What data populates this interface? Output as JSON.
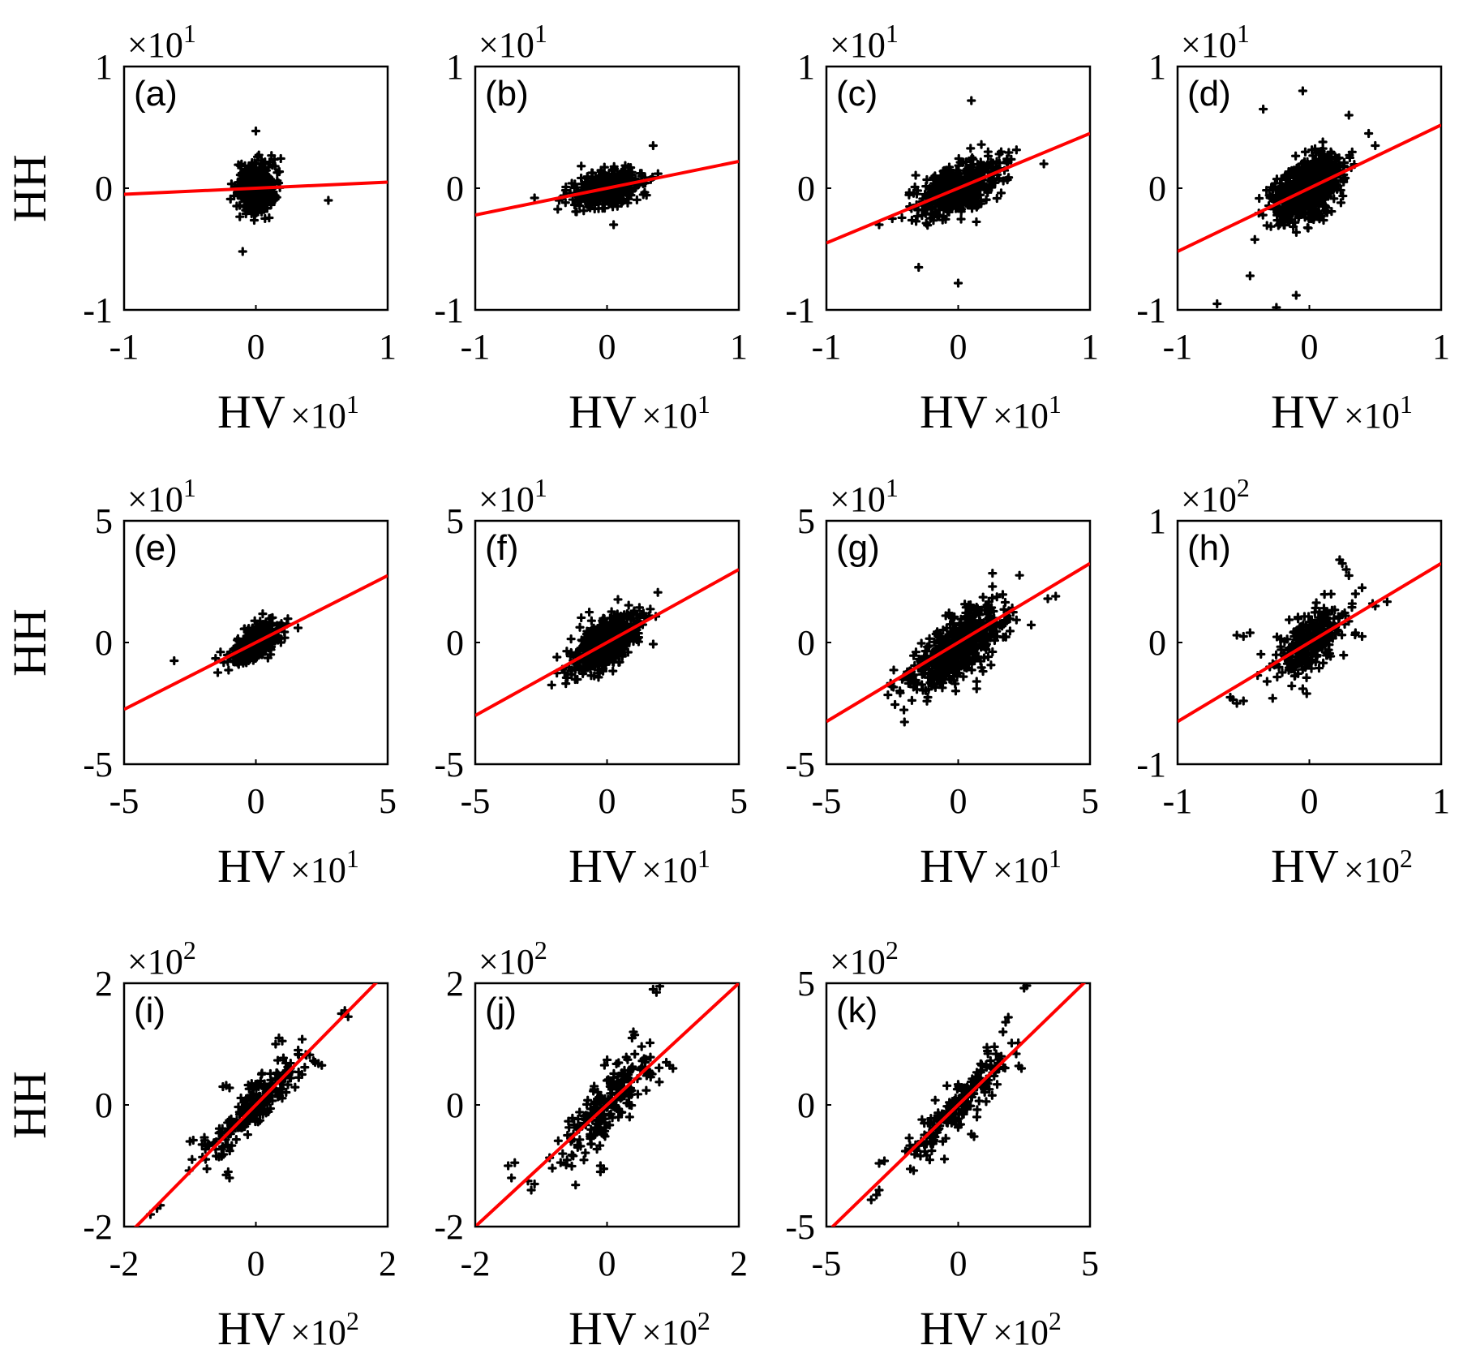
{
  "figure": {
    "ylabel": "HH",
    "xlabel": "HV",
    "red_color": "#ff0000",
    "point_color": "#000000"
  },
  "chart_data": [
    {
      "type": "scatter",
      "panel": "(a)",
      "xlabel": "HV",
      "ylabel": "HH",
      "x_ticks": [
        "-1",
        "0",
        "1"
      ],
      "y_ticks": [
        "-1",
        "0",
        "1"
      ],
      "x_multiplier_base": "×10",
      "x_multiplier_exp": "1",
      "y_multiplier_base": "×10",
      "y_multiplier_exp": "1",
      "xlim": [
        -1,
        1
      ],
      "ylim": [
        -1,
        1
      ],
      "fit_line": {
        "slope": 0.05,
        "intercept": 0.0
      },
      "cloud": {
        "cx": 0.0,
        "cy": 0.0,
        "sx": 0.07,
        "sy": 0.1,
        "rho": 0.0,
        "n": 450
      },
      "outliers": [
        [
          0.0,
          0.47
        ],
        [
          -0.1,
          -0.52
        ],
        [
          0.55,
          -0.1
        ]
      ]
    },
    {
      "type": "scatter",
      "panel": "(b)",
      "xlabel": "HV",
      "ylabel": "HH",
      "x_ticks": [
        "-1",
        "0",
        "1"
      ],
      "y_ticks": [
        "-1",
        "0",
        "1"
      ],
      "x_multiplier_base": "×10",
      "x_multiplier_exp": "1",
      "y_multiplier_base": "×10",
      "y_multiplier_exp": "1",
      "xlim": [
        -1,
        1
      ],
      "ylim": [
        -1,
        1
      ],
      "fit_line": {
        "slope": 0.22,
        "intercept": 0.0
      },
      "cloud": {
        "cx": 0.0,
        "cy": 0.0,
        "sx": 0.12,
        "sy": 0.07,
        "rho": 0.3,
        "n": 500
      },
      "outliers": [
        [
          0.35,
          0.35
        ],
        [
          -0.55,
          -0.08
        ],
        [
          0.05,
          -0.3
        ]
      ]
    },
    {
      "type": "scatter",
      "panel": "(c)",
      "xlabel": "HV",
      "ylabel": "HH",
      "x_ticks": [
        "-1",
        "0",
        "1"
      ],
      "y_ticks": [
        "-1",
        "0",
        "1"
      ],
      "x_multiplier_base": "×10",
      "x_multiplier_exp": "1",
      "y_multiplier_base": "×10",
      "y_multiplier_exp": "1",
      "xlim": [
        -1,
        1
      ],
      "ylim": [
        -1,
        1
      ],
      "fit_line": {
        "slope": 0.45,
        "intercept": 0.0
      },
      "cloud": {
        "cx": 0.0,
        "cy": 0.0,
        "sx": 0.15,
        "sy": 0.11,
        "rho": 0.45,
        "n": 550
      },
      "outliers": [
        [
          0.1,
          0.72
        ],
        [
          -0.3,
          -0.65
        ],
        [
          0.0,
          -0.78
        ],
        [
          -0.6,
          -0.3
        ],
        [
          0.65,
          0.2
        ],
        [
          -0.5,
          -0.25
        ]
      ]
    },
    {
      "type": "scatter",
      "panel": "(d)",
      "xlabel": "HV",
      "ylabel": "HH",
      "x_ticks": [
        "-1",
        "0",
        "1"
      ],
      "y_ticks": [
        "-1",
        "0",
        "1"
      ],
      "x_multiplier_base": "×10",
      "x_multiplier_exp": "1",
      "y_multiplier_base": "×10",
      "y_multiplier_exp": "1",
      "xlim": [
        -1,
        1
      ],
      "ylim": [
        -1,
        1
      ],
      "fit_line": {
        "slope": 0.52,
        "intercept": 0.0
      },
      "cloud": {
        "cx": 0.0,
        "cy": 0.0,
        "sx": 0.13,
        "sy": 0.13,
        "rho": 0.4,
        "n": 800
      },
      "outliers": [
        [
          -0.35,
          0.65
        ],
        [
          -0.05,
          0.8
        ],
        [
          0.3,
          0.6
        ],
        [
          -0.45,
          -0.72
        ],
        [
          -0.7,
          -0.95
        ],
        [
          -0.25,
          -0.98
        ],
        [
          -0.1,
          -0.88
        ],
        [
          0.45,
          0.45
        ],
        [
          0.5,
          0.35
        ]
      ]
    },
    {
      "type": "scatter",
      "panel": "(e)",
      "xlabel": "HV",
      "ylabel": "HH",
      "x_ticks": [
        "-5",
        "0",
        "5"
      ],
      "y_ticks": [
        "-5",
        "0",
        "5"
      ],
      "x_multiplier_base": "×10",
      "x_multiplier_exp": "1",
      "y_multiplier_base": "×10",
      "y_multiplier_exp": "1",
      "xlim": [
        -5,
        5
      ],
      "ylim": [
        -5,
        5
      ],
      "fit_line": {
        "slope": 0.55,
        "intercept": 0.0
      },
      "cloud": {
        "cx": 0.0,
        "cy": 0.0,
        "sx": 0.45,
        "sy": 0.38,
        "rho": 0.55,
        "n": 450
      },
      "outliers": [
        [
          -3.1,
          -0.75
        ],
        [
          1.6,
          0.6
        ]
      ]
    },
    {
      "type": "scatter",
      "panel": "(f)",
      "xlabel": "HV",
      "ylabel": "HH",
      "x_ticks": [
        "-5",
        "0",
        "5"
      ],
      "y_ticks": [
        "-5",
        "0",
        "5"
      ],
      "x_multiplier_base": "×10",
      "x_multiplier_exp": "1",
      "y_multiplier_base": "×10",
      "y_multiplier_exp": "1",
      "xlim": [
        -5,
        5
      ],
      "ylim": [
        -5,
        5
      ],
      "fit_line": {
        "slope": 0.6,
        "intercept": 0.0
      },
      "cloud": {
        "cx": 0.0,
        "cy": 0.0,
        "sx": 0.65,
        "sy": 0.55,
        "rho": 0.55,
        "n": 600
      },
      "outliers": [
        [
          -1.9,
          -0.6
        ],
        [
          1.6,
          1.1
        ]
      ]
    },
    {
      "type": "scatter",
      "panel": "(g)",
      "xlabel": "HV",
      "ylabel": "HH",
      "x_ticks": [
        "-5",
        "0",
        "5"
      ],
      "y_ticks": [
        "-5",
        "0",
        "5"
      ],
      "x_multiplier_base": "×10",
      "x_multiplier_exp": "1",
      "y_multiplier_base": "×10",
      "y_multiplier_exp": "1",
      "xlim": [
        -5,
        5
      ],
      "ylim": [
        -5,
        5
      ],
      "fit_line": {
        "slope": 0.65,
        "intercept": 0.0
      },
      "cloud": {
        "cx": 0.0,
        "cy": -0.2,
        "sx": 0.85,
        "sy": 0.8,
        "rho": 0.65,
        "n": 650
      },
      "outliers": [
        [
          3.7,
          1.9
        ],
        [
          3.4,
          1.8
        ],
        [
          0.7,
          -1.9
        ],
        [
          0.7,
          -1.6
        ],
        [
          1.3,
          2.3
        ]
      ]
    },
    {
      "type": "scatter",
      "panel": "(h)",
      "xlabel": "HV",
      "ylabel": "HH",
      "x_ticks": [
        "-1",
        "0",
        "1"
      ],
      "y_ticks": [
        "-1",
        "0",
        "1"
      ],
      "x_multiplier_base": "×10",
      "x_multiplier_exp": "2",
      "y_multiplier_base": "×10",
      "y_multiplier_exp": "2",
      "xlim": [
        -1,
        1
      ],
      "ylim": [
        -1,
        1
      ],
      "fit_line": {
        "slope": 0.65,
        "intercept": 0.0
      },
      "cloud": {
        "cx": 0.0,
        "cy": 0.0,
        "sx": 0.13,
        "sy": 0.13,
        "rho": 0.55,
        "n": 300
      },
      "outliers": [
        [
          0.25,
          0.65
        ],
        [
          0.28,
          0.6
        ],
        [
          0.23,
          0.68
        ],
        [
          0.3,
          0.55
        ],
        [
          -0.5,
          -0.48
        ],
        [
          -0.6,
          -0.45
        ],
        [
          -0.55,
          -0.5
        ],
        [
          -0.58,
          -0.47
        ],
        [
          -0.5,
          0.05
        ],
        [
          -0.45,
          0.08
        ],
        [
          -0.55,
          0.06
        ],
        [
          0.4,
          0.45
        ],
        [
          0.35,
          0.4
        ],
        [
          0.5,
          0.3
        ],
        [
          0.48,
          0.32
        ],
        [
          -0.02,
          -0.42
        ],
        [
          -0.05,
          -0.38
        ],
        [
          0.35,
          0.08
        ],
        [
          0.4,
          0.05
        ],
        [
          -0.3,
          -0.2
        ],
        [
          -0.25,
          -0.18
        ]
      ]
    },
    {
      "type": "scatter",
      "panel": "(i)",
      "xlabel": "HV",
      "ylabel": "HH",
      "x_ticks": [
        "-2",
        "0",
        "2"
      ],
      "y_ticks": [
        "-2",
        "0",
        "2"
      ],
      "x_multiplier_base": "×10",
      "x_multiplier_exp": "2",
      "y_multiplier_base": "×10",
      "y_multiplier_exp": "2",
      "xlim": [
        -2,
        2
      ],
      "ylim": [
        -2,
        2
      ],
      "fit_line": {
        "slope": 1.1,
        "intercept": 0.0
      },
      "cloud": {
        "cx": 0.0,
        "cy": 0.0,
        "sx": 0.35,
        "sy": 0.35,
        "rho": 0.85,
        "n": 220
      },
      "outliers": [
        [
          -0.5,
          0.3
        ],
        [
          -0.45,
          0.32
        ],
        [
          -0.4,
          0.28
        ],
        [
          0.35,
          1.1
        ],
        [
          0.4,
          1.05
        ],
        [
          0.3,
          1.0
        ],
        [
          1.3,
          1.5
        ],
        [
          1.35,
          1.55
        ],
        [
          1.4,
          1.45
        ],
        [
          -1.5,
          -1.7
        ],
        [
          -1.6,
          -1.8
        ],
        [
          -1.45,
          -1.65
        ],
        [
          -0.45,
          -1.15
        ],
        [
          -0.4,
          -1.2
        ],
        [
          -0.42,
          -1.1
        ],
        [
          0.9,
          0.7
        ],
        [
          1.0,
          0.65
        ],
        [
          0.95,
          0.68
        ],
        [
          -1.0,
          -0.6
        ],
        [
          -0.95,
          -0.58
        ],
        [
          0.7,
          0.5
        ],
        [
          0.65,
          0.45
        ]
      ]
    },
    {
      "type": "scatter",
      "panel": "(j)",
      "xlabel": "HV",
      "ylabel": "HH",
      "x_ticks": [
        "-2",
        "0",
        "2"
      ],
      "y_ticks": [
        "-2",
        "0",
        "2"
      ],
      "x_multiplier_base": "×10",
      "x_multiplier_exp": "2",
      "y_multiplier_base": "×10",
      "y_multiplier_exp": "2",
      "xlim": [
        -2,
        2
      ],
      "ylim": [
        -2,
        2
      ],
      "fit_line": {
        "slope": 1.0,
        "intercept": 0.0
      },
      "cloud": {
        "cx": 0.0,
        "cy": 0.0,
        "sx": 0.35,
        "sy": 0.4,
        "rho": 0.8,
        "n": 220
      },
      "outliers": [
        [
          -1.4,
          -0.95
        ],
        [
          -1.5,
          -1.0
        ],
        [
          -1.45,
          -1.2
        ],
        [
          -1.2,
          -1.25
        ],
        [
          -1.1,
          -1.3
        ],
        [
          -1.15,
          -1.4
        ],
        [
          0.7,
          1.9
        ],
        [
          0.75,
          1.85
        ],
        [
          0.8,
          1.95
        ],
        [
          0.4,
          1.2
        ],
        [
          0.42,
          1.15
        ],
        [
          0.38,
          1.1
        ],
        [
          0.9,
          0.7
        ],
        [
          0.95,
          0.65
        ],
        [
          1.0,
          0.6
        ],
        [
          -0.1,
          -1.0
        ],
        [
          -0.05,
          -1.05
        ],
        [
          -0.1,
          -1.1
        ],
        [
          -0.6,
          -0.5
        ],
        [
          -0.55,
          -0.55
        ],
        [
          0.0,
          0.4
        ],
        [
          0.1,
          0.45
        ]
      ]
    },
    {
      "type": "scatter",
      "panel": "(k)",
      "xlabel": "HV",
      "ylabel": "HH",
      "x_ticks": [
        "-5",
        "0",
        "5"
      ],
      "y_ticks": [
        "-5",
        "0",
        "5"
      ],
      "x_multiplier_base": "×10",
      "x_multiplier_exp": "2",
      "y_multiplier_base": "×10",
      "y_multiplier_exp": "2",
      "xlim": [
        -5,
        5
      ],
      "ylim": [
        -5,
        5
      ],
      "fit_line": {
        "slope": 1.05,
        "intercept": 0.0
      },
      "cloud": {
        "cx": 0.0,
        "cy": 0.0,
        "sx": 0.9,
        "sy": 1.0,
        "rho": 0.9,
        "n": 200
      },
      "outliers": [
        [
          -3.0,
          -2.4
        ],
        [
          -2.8,
          -2.3
        ],
        [
          -3.3,
          -3.9
        ],
        [
          -3.1,
          -3.7
        ],
        [
          -3.0,
          -3.5
        ],
        [
          2.6,
          4.9
        ],
        [
          2.5,
          4.8
        ],
        [
          2.2,
          2.1
        ],
        [
          2.3,
          1.6
        ],
        [
          2.4,
          1.5
        ],
        [
          1.8,
          3.4
        ],
        [
          1.9,
          3.6
        ],
        [
          1.7,
          3.0
        ],
        [
          -1.0,
          -1.5
        ],
        [
          -1.2,
          -1.6
        ],
        [
          -1.8,
          -1.8
        ],
        [
          -2.0,
          -1.9
        ],
        [
          0.5,
          -1.2
        ],
        [
          0.6,
          -1.3
        ]
      ]
    }
  ]
}
